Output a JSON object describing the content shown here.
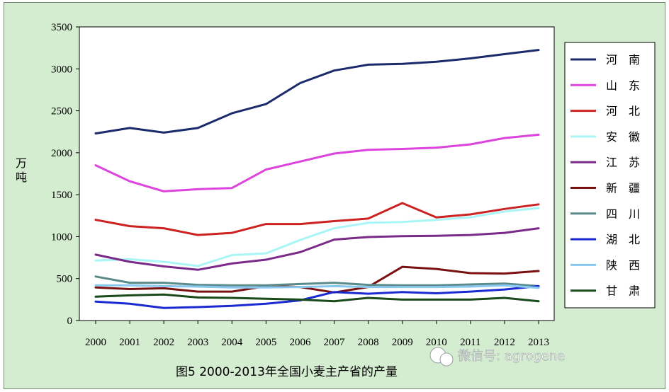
{
  "chart_data": {
    "type": "line",
    "title": "图5 2000-2013年全国小麦主产省的产量",
    "ylabel": "万吨",
    "xlabel": "",
    "x": [
      2000,
      2001,
      2002,
      2003,
      2004,
      2005,
      2006,
      2007,
      2008,
      2009,
      2010,
      2011,
      2012,
      2013
    ],
    "ylim": [
      0,
      3500
    ],
    "yticks": [
      0,
      500,
      1000,
      1500,
      2000,
      2500,
      3000,
      3500
    ],
    "grid": false,
    "legend_position": "right",
    "series": [
      {
        "name": "河　南",
        "color": "#1a2a6b",
        "values": [
          2230,
          2295,
          2240,
          2295,
          2470,
          2580,
          2830,
          2980,
          3050,
          3060,
          3085,
          3125,
          3175,
          3225
        ]
      },
      {
        "name": "山　东",
        "color": "#dd44dd",
        "values": [
          1850,
          1660,
          1540,
          1565,
          1580,
          1800,
          1895,
          1990,
          2035,
          2045,
          2060,
          2100,
          2175,
          2215
        ]
      },
      {
        "name": "河　北",
        "color": "#cc2222",
        "values": [
          1200,
          1125,
          1100,
          1020,
          1045,
          1150,
          1150,
          1185,
          1215,
          1400,
          1230,
          1265,
          1330,
          1385
        ]
      },
      {
        "name": "安　徽",
        "color": "#aaf5f5",
        "values": [
          715,
          730,
          700,
          650,
          780,
          800,
          960,
          1100,
          1165,
          1175,
          1200,
          1230,
          1300,
          1340
        ]
      },
      {
        "name": "江　苏",
        "color": "#7a2a88",
        "values": [
          785,
          700,
          645,
          605,
          680,
          725,
          815,
          965,
          995,
          1005,
          1010,
          1020,
          1045,
          1100
        ]
      },
      {
        "name": "新　疆",
        "color": "#7a1010",
        "values": [
          395,
          375,
          385,
          345,
          345,
          410,
          400,
          335,
          400,
          640,
          615,
          565,
          560,
          590
        ]
      },
      {
        "name": "四　川",
        "color": "#5a8a8a",
        "values": [
          525,
          450,
          450,
          425,
          420,
          420,
          435,
          450,
          425,
          420,
          420,
          430,
          440,
          410
        ]
      },
      {
        "name": "湖　北",
        "color": "#1a2ad0",
        "values": [
          225,
          200,
          150,
          160,
          175,
          200,
          240,
          340,
          320,
          340,
          325,
          345,
          370,
          410
        ]
      },
      {
        "name": "陕　西",
        "color": "#88c8ee",
        "values": [
          420,
          420,
          410,
          405,
          395,
          395,
          400,
          410,
          400,
          400,
          400,
          405,
          420,
          390
        ]
      },
      {
        "name": "甘　肃",
        "color": "#1a4a1a",
        "values": [
          285,
          300,
          310,
          275,
          270,
          260,
          250,
          230,
          270,
          250,
          250,
          250,
          270,
          230
        ]
      }
    ]
  },
  "watermark": "微信号: agrogene"
}
